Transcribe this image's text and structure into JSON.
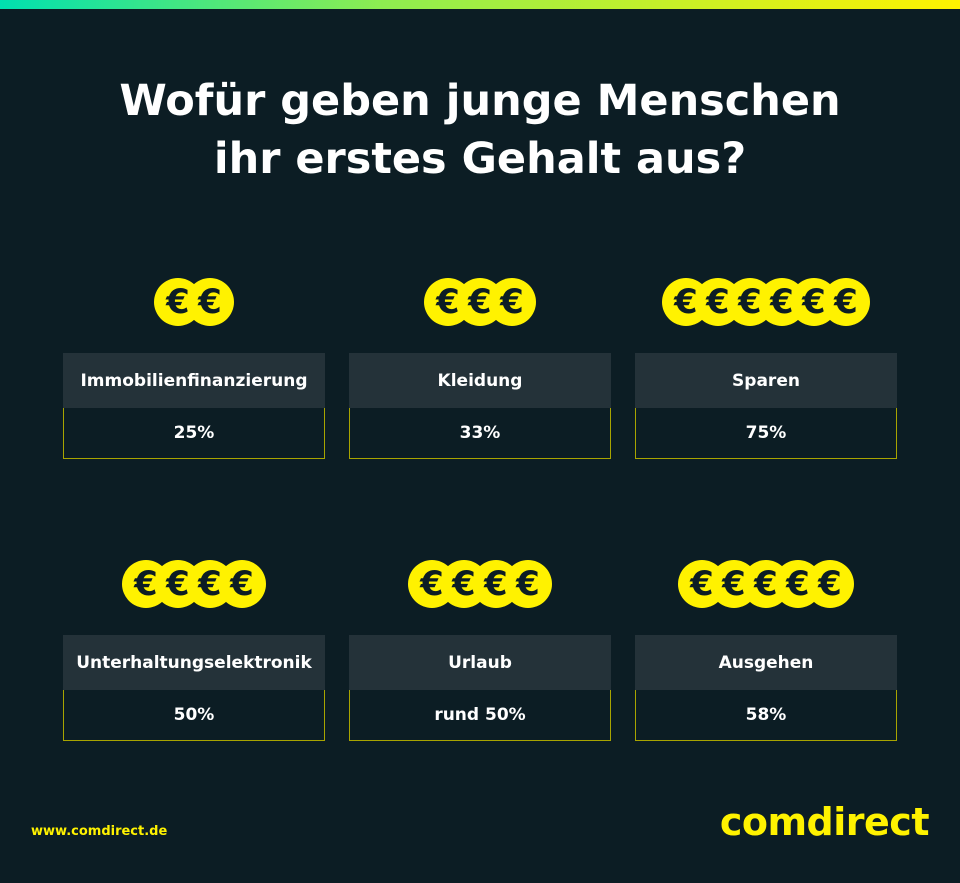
{
  "title_line1": "Wofür geben junge Menschen",
  "title_line2": "ihr erstes Gehalt aus?",
  "coin_symbol": "€",
  "accent_color": "#fff200",
  "chart_data": {
    "type": "table",
    "title": "Wofür geben junge Menschen ihr erstes Gehalt aus?",
    "categories": [
      "Immobilienfinanzierung",
      "Kleidung",
      "Sparen",
      "Unterhaltungselektronik",
      "Urlaub",
      "Ausgehen"
    ],
    "values": [
      25,
      33,
      75,
      50,
      50,
      58
    ],
    "value_labels": [
      "25%",
      "33%",
      "75%",
      "50%",
      "rund 50%",
      "58%"
    ],
    "coin_counts": [
      2,
      3,
      6,
      4,
      4,
      5
    ]
  },
  "footer": {
    "url": "www.comdirect.de",
    "logo": "comdirect"
  }
}
